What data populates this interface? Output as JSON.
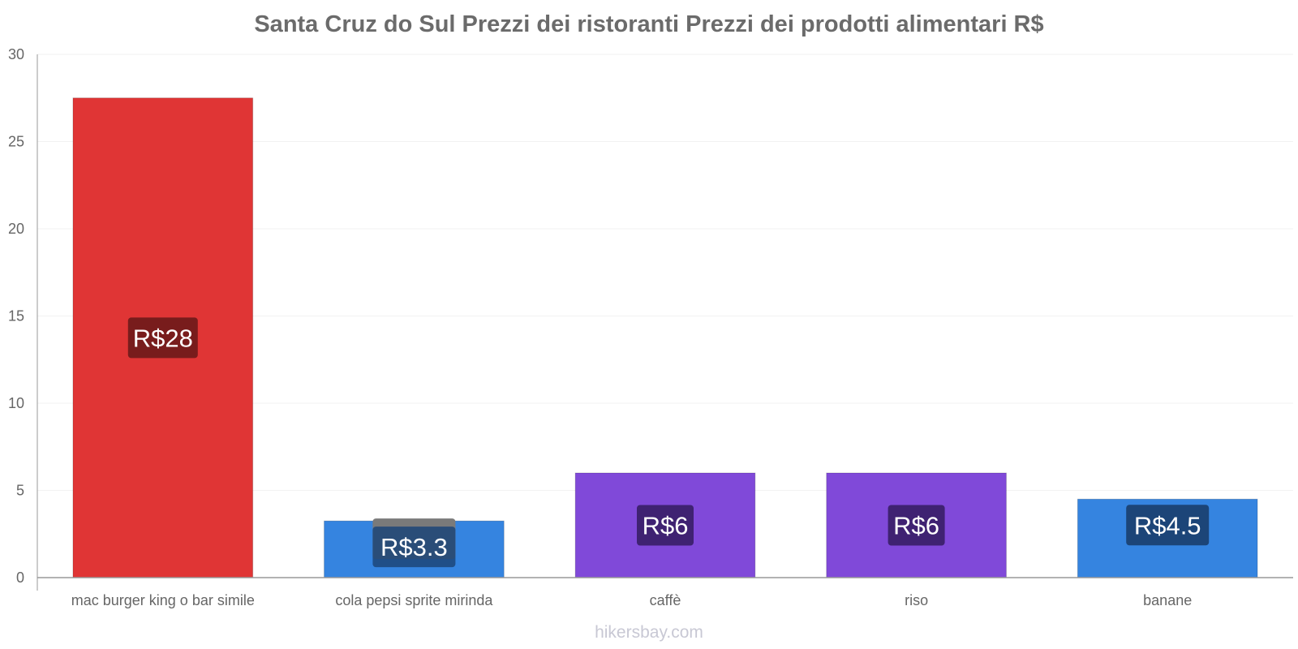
{
  "chart_data": {
    "type": "bar",
    "title": "Santa Cruz do Sul Prezzi dei ristoranti Prezzi dei prodotti alimentari R$",
    "xlabel": "",
    "ylabel": "",
    "ylim": [
      0,
      30
    ],
    "yticks": [
      0,
      5,
      10,
      15,
      20,
      25,
      30
    ],
    "grid": true,
    "categories": [
      "mac burger king o bar simile",
      "cola pepsi sprite mirinda",
      "caffè",
      "riso",
      "banane"
    ],
    "values": [
      27.5,
      3.25,
      6,
      6,
      4.5
    ],
    "data_labels": [
      "R$28",
      "R$3.3",
      "R$6",
      "R$6",
      "R$4.5"
    ],
    "colors": [
      "#e03535",
      "#3584e0",
      "#8049d9",
      "#8049d9",
      "#3584e0"
    ],
    "label_bg_colors": [
      "#781c1c",
      "#1c4578",
      "#3f2272",
      "#3f2272",
      "#1c4578"
    ]
  },
  "watermark": "hikersbay.com"
}
